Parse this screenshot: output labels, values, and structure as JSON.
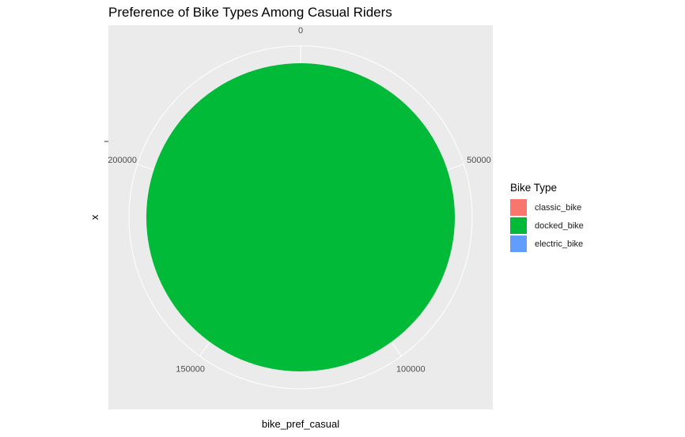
{
  "chart_data": {
    "type": "pie",
    "title": "Preference of Bike Types Among Casual Riders",
    "xlabel": "bike_pref_casual",
    "ylabel": "x",
    "legend_title": "Bike Type",
    "legend_position": "right",
    "panel_background": "#ebebeb",
    "grid_color": "#ffffff",
    "axis_range": [
      0,
      250000
    ],
    "ticks": [
      {
        "value": 0,
        "label": "0"
      },
      {
        "value": 50000,
        "label": "50000"
      },
      {
        "value": 100000,
        "label": "100000"
      },
      {
        "value": 150000,
        "label": "150000"
      },
      {
        "value": 200000,
        "label": "200000"
      }
    ],
    "categories": [
      "classic_bike",
      "docked_bike",
      "electric_bike"
    ],
    "colors": [
      "#f8766d",
      "#00ba38",
      "#619cff"
    ],
    "values": [
      0,
      250000,
      0
    ]
  }
}
